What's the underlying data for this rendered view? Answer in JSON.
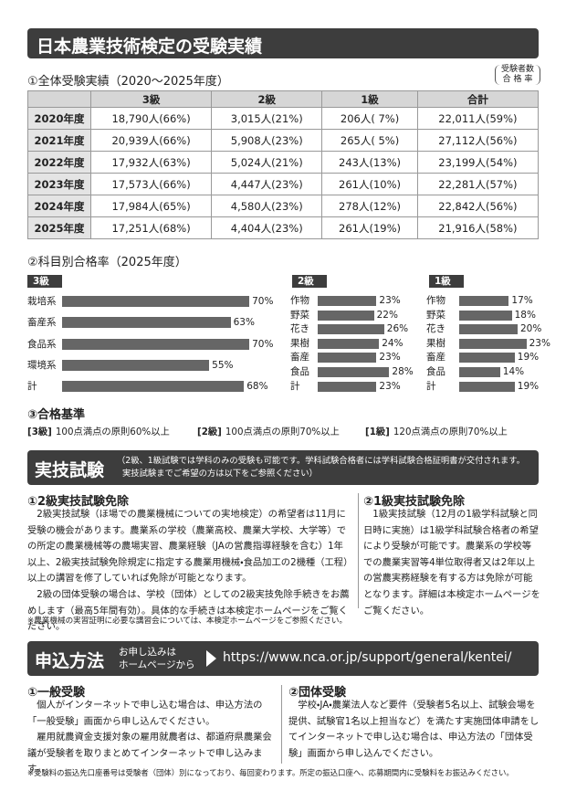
{
  "header": {
    "title": "日本農業技術検定の受験実績"
  },
  "results": {
    "heading": "①全体受験実績（2020〜2025年度）",
    "note": [
      "受験者数",
      "合 格 率"
    ],
    "table": {
      "columns": [
        "3級",
        "2級",
        "1級",
        "合計"
      ],
      "rows": [
        {
          "year": "2020年度",
          "cells": [
            "18,790人(66%)",
            "3,015人(21%)",
            "206人( 7%)",
            "22,011人(59%)"
          ]
        },
        {
          "year": "2021年度",
          "cells": [
            "20,939人(66%)",
            "5,908人(23%)",
            "265人( 5%)",
            "27,112人(56%)"
          ]
        },
        {
          "year": "2022年度",
          "cells": [
            "17,932人(63%)",
            "5,024人(21%)",
            "243人(13%)",
            "23,199人(54%)"
          ]
        },
        {
          "year": "2023年度",
          "cells": [
            "17,573人(66%)",
            "4,447人(23%)",
            "261人(10%)",
            "22,281人(57%)"
          ]
        },
        {
          "year": "2024年度",
          "cells": [
            "17,984人(65%)",
            "4,580人(23%)",
            "278人(12%)",
            "22,842人(56%)"
          ]
        },
        {
          "year": "2025年度",
          "cells": [
            "17,251人(68%)",
            "4,404人(23%)",
            "261人(19%)",
            "21,916人(58%)"
          ]
        }
      ]
    }
  },
  "subject_heading": "②科目別合格率（2025年度）",
  "chart_data": [
    {
      "type": "bar",
      "title": "3級",
      "color": "#666666",
      "categories": [
        "栽培系",
        "畜産系",
        "食品系",
        "環境系",
        "計"
      ],
      "values": [
        70,
        63,
        70,
        55,
        68
      ],
      "value_labels": [
        "70%",
        "63%",
        "70%",
        "55%",
        "68%"
      ]
    },
    {
      "type": "bar",
      "title": "2級",
      "color": "#666666",
      "categories": [
        "作物",
        "野菜",
        "花き",
        "果樹",
        "畜産",
        "食品",
        "計"
      ],
      "values": [
        23,
        22,
        26,
        24,
        23,
        28,
        23
      ],
      "value_labels": [
        "23%",
        "22%",
        "26%",
        "24%",
        "23%",
        "28%",
        "23%"
      ]
    },
    {
      "type": "bar",
      "title": "1級",
      "color": "#666666",
      "categories": [
        "作物",
        "野菜",
        "花き",
        "果樹",
        "畜産",
        "食品",
        "計"
      ],
      "values": [
        17,
        18,
        20,
        23,
        19,
        14,
        19
      ],
      "value_labels": [
        "17%",
        "18%",
        "20%",
        "23%",
        "19%",
        "14%",
        "19%"
      ]
    }
  ],
  "criteria": {
    "heading": "③合格基準",
    "items": [
      {
        "grade": "[3級]",
        "text": "100点満点の原則60%以上"
      },
      {
        "grade": "[2級]",
        "text": "100点満点の原則70%以上"
      },
      {
        "grade": "[1級]",
        "text": "120点満点の原則70%以上"
      }
    ]
  },
  "practical": {
    "title": "実技試験",
    "note": [
      "（2級、1級試験では学科のみの受験も可能です。学科試験合格者には学科試験合格証明書が交付されます。",
      "実技試験までご希望の方は以下をご参照ください）"
    ],
    "sections": [
      {
        "heading": "①2級実技試験免除",
        "paragraphs": [
          "2級実技試験（ほ場での農業機械についての実地検定）の希望者は11月に受験の機会があります。農業系の学校（農業高校、農業大学校、大学等）での所定の農業機械等の農場実習、農業経験（JAの営農指導経験を含む）1年以上、2級実技試験免除規定に指定する農業用機械・食品加工の2機種（工程）以上の講習を修了していれば免除が可能となります。",
          "2級の団体受験の場合は、学校（団体）としての2級実技免除手続きをお薦めします（最高5年間有効）。具体的な手続きは本検定ホームページをご覧ください。"
        ]
      },
      {
        "heading": "②1級実技試験免除",
        "paragraphs": [
          "1級実技試験（12月の1級学科試験と同日時に実施）は1級学科試験合格者の希望により受験が可能です。農業系の学校等での農業実習等4単位取得者又は2年以上の営農実務経験を有する方は免除が可能となります。詳細は本検定ホームページをご覧ください。"
        ]
      }
    ],
    "footnote": "※農業機械の実習証明に必要な講習会については、本検定ホームページをご参照ください。"
  },
  "application": {
    "title": "申込方法",
    "sub": [
      "お申し込みは",
      "ホームページから"
    ],
    "url": "https://www.nca.or.jp/support/general/kentei/",
    "sections": [
      {
        "heading": "①一般受験",
        "paragraphs": [
          "個人がインターネットで申し込む場合は、申込方法の「一般受験」画面から申し込んでください。",
          "雇用就農資金支援対象の雇用就農者は、都道府県農業会議が受験者を取りまとめてインターネットで申し込みます。"
        ]
      },
      {
        "heading": "②団体受験",
        "paragraphs": [
          "学校・JA・農業法人など要件（受験者5名以上、試験会場を提供、試験官1名以上担当など）を満たす実施団体申請をしてインターネットで申し込む場合は、申込方法の「団体受験」画面から申し込んでください。"
        ]
      }
    ],
    "footnote": "※受験料の振込先口座番号は受験者（団体）別になっており、毎回変わります。所定の振込口座へ、応募期間内に受験料をお振込みください。"
  }
}
